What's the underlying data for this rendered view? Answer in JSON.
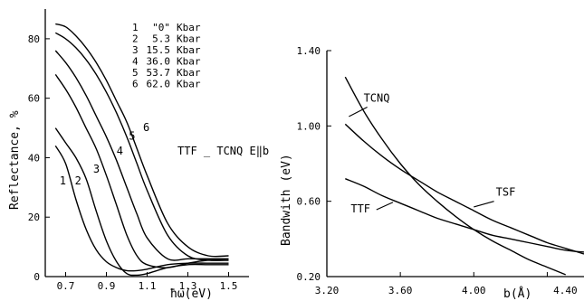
{
  "chart_data": [
    {
      "type": "line",
      "xlabel": "ħω(eV)",
      "ylabel": "Reflectance, %",
      "xlim": [
        0.6,
        1.6
      ],
      "ylim": [
        0,
        90
      ],
      "x_ticks": [
        "0.7",
        "0.9",
        "1.1",
        "1.3",
        "1.5"
      ],
      "x_tick_values": [
        0.7,
        0.9,
        1.1,
        1.3,
        1.5
      ],
      "y_ticks": [
        "0",
        "20",
        "40",
        "60",
        "80"
      ],
      "y_tick_values": [
        0,
        20,
        40,
        60,
        80
      ],
      "annotation": "TTF _ TCNQ E‖b",
      "legend": [
        {
          "num": "1",
          "val": "\"0\"",
          "unit": "Kbar"
        },
        {
          "num": "2",
          "val": "5.3",
          "unit": "Kbar"
        },
        {
          "num": "3",
          "val": "15.5",
          "unit": "Kbar"
        },
        {
          "num": "4",
          "val": "36.0",
          "unit": "Kbar"
        },
        {
          "num": "5",
          "val": "53.7",
          "unit": "Kbar"
        },
        {
          "num": "6",
          "val": "62.0",
          "unit": "Kbar"
        }
      ],
      "series": [
        {
          "name": "1",
          "label_at": [
            0.67,
            31
          ],
          "x": [
            0.65,
            0.7,
            0.75,
            0.8,
            0.85,
            0.9,
            0.95,
            1.0,
            1.05,
            1.1,
            1.2,
            1.3,
            1.4,
            1.5
          ],
          "y": [
            44,
            38,
            26,
            16,
            9,
            5,
            3,
            2,
            2,
            2.5,
            4,
            4.5,
            4.5,
            4.5
          ]
        },
        {
          "name": "2",
          "label_at": [
            0.745,
            31
          ],
          "x": [
            0.65,
            0.7,
            0.75,
            0.8,
            0.85,
            0.9,
            0.95,
            1.0,
            1.05,
            1.1,
            1.2,
            1.3,
            1.4,
            1.5
          ],
          "y": [
            50,
            45,
            40,
            33,
            22,
            12,
            5,
            1,
            0.5,
            1,
            3,
            4,
            4,
            4
          ]
        },
        {
          "name": "3",
          "label_at": [
            0.835,
            35
          ],
          "x": [
            0.65,
            0.7,
            0.75,
            0.8,
            0.85,
            0.9,
            0.95,
            1.0,
            1.05,
            1.1,
            1.2,
            1.3,
            1.4,
            1.5
          ],
          "y": [
            68,
            63,
            57,
            50,
            43,
            34,
            24,
            14,
            7,
            4,
            3,
            4.5,
            5.5,
            5.5
          ]
        },
        {
          "name": "4",
          "label_at": [
            0.95,
            41
          ],
          "x": [
            0.65,
            0.7,
            0.75,
            0.8,
            0.85,
            0.9,
            0.95,
            1.0,
            1.05,
            1.1,
            1.2,
            1.3,
            1.4,
            1.5
          ],
          "y": [
            76,
            72,
            67,
            61,
            54,
            47,
            39,
            30,
            21,
            13,
            6,
            6,
            6,
            6
          ]
        },
        {
          "name": "5",
          "label_at": [
            1.01,
            46
          ],
          "x": [
            0.65,
            0.7,
            0.75,
            0.8,
            0.85,
            0.9,
            0.95,
            1.0,
            1.05,
            1.1,
            1.2,
            1.3,
            1.4,
            1.5
          ],
          "y": [
            82,
            80,
            77,
            73,
            68,
            62,
            55,
            47,
            38,
            29,
            14,
            7,
            5.5,
            5.5
          ]
        },
        {
          "name": "6",
          "label_at": [
            1.08,
            49
          ],
          "x": [
            0.65,
            0.7,
            0.75,
            0.8,
            0.85,
            0.9,
            0.95,
            1.0,
            1.05,
            1.1,
            1.2,
            1.3,
            1.4,
            1.5
          ],
          "y": [
            85,
            84,
            81,
            77,
            72,
            66,
            59,
            52,
            43,
            34,
            18,
            10,
            7,
            7
          ]
        }
      ]
    },
    {
      "type": "line",
      "xlabel": "b(Å)",
      "ylabel": "Bandwith (eV)",
      "xlim": [
        3.2,
        4.6
      ],
      "ylim": [
        0.2,
        1.4
      ],
      "x_ticks": [
        "3.20",
        "3.60",
        "4.00",
        "4.40"
      ],
      "x_tick_values": [
        3.2,
        3.6,
        4.0,
        4.4
      ],
      "y_ticks": [
        "0.20",
        "0.60",
        "1.00",
        "1.40"
      ],
      "y_tick_values": [
        0.2,
        0.6,
        1.0,
        1.4
      ],
      "series": [
        {
          "name": "TCNQ",
          "label_at": [
            3.4,
            1.13
          ],
          "leader": [
            [
              3.42,
              1.1
            ],
            [
              3.32,
              1.05
            ]
          ],
          "x": [
            3.3,
            3.4,
            3.5,
            3.6,
            3.7,
            3.8,
            3.9,
            4.0,
            4.1,
            4.2,
            4.3,
            4.4,
            4.5
          ],
          "y": [
            1.26,
            1.08,
            0.93,
            0.8,
            0.69,
            0.6,
            0.52,
            0.45,
            0.39,
            0.34,
            0.29,
            0.25,
            0.21
          ]
        },
        {
          "name": "TSF",
          "label_at": [
            4.12,
            0.63
          ],
          "leader": [
            [
              4.11,
              0.6
            ],
            [
              4.0,
              0.57
            ]
          ],
          "x": [
            3.3,
            3.4,
            3.5,
            3.6,
            3.7,
            3.8,
            3.9,
            4.0,
            4.1,
            4.2,
            4.3,
            4.4,
            4.5,
            4.6
          ],
          "y": [
            1.01,
            0.92,
            0.84,
            0.77,
            0.71,
            0.65,
            0.6,
            0.55,
            0.5,
            0.46,
            0.42,
            0.38,
            0.35,
            0.32
          ]
        },
        {
          "name": "TTF",
          "label_at": [
            3.33,
            0.54
          ],
          "leader": [
            [
              3.47,
              0.555
            ],
            [
              3.56,
              0.595
            ]
          ],
          "x": [
            3.3,
            3.4,
            3.5,
            3.6,
            3.7,
            3.8,
            3.9,
            4.0,
            4.1,
            4.2,
            4.3,
            4.4,
            4.5,
            4.6
          ],
          "y": [
            0.72,
            0.68,
            0.63,
            0.59,
            0.55,
            0.51,
            0.48,
            0.45,
            0.42,
            0.4,
            0.38,
            0.36,
            0.34,
            0.33
          ]
        }
      ]
    }
  ]
}
